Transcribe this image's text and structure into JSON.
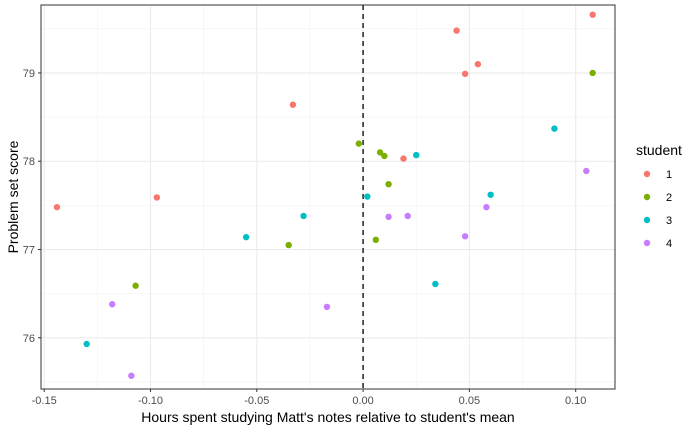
{
  "chart_data": {
    "type": "scatter",
    "title": "",
    "xlabel": "Hours spent studying Matt's notes relative to student's mean",
    "ylabel": "Problem set score",
    "xlim": [
      -0.1515,
      0.1185
    ],
    "ylim": [
      75.42,
      79.77
    ],
    "xticks": [
      -0.15,
      -0.1,
      -0.05,
      0.0,
      0.05,
      0.1
    ],
    "xtick_labels": [
      "-0.15",
      "-0.10",
      "-0.05",
      "0.00",
      "0.05",
      "0.10"
    ],
    "yticks": [
      76,
      77,
      78,
      79
    ],
    "ytick_labels": [
      "76",
      "77",
      "78",
      "79"
    ],
    "grid": true,
    "reference_line": {
      "x": 0,
      "style": "dashed"
    },
    "legend": {
      "title": "student",
      "position": "right"
    },
    "series": [
      {
        "name": "1",
        "color": "#F8766D",
        "points": [
          {
            "x": -0.144,
            "y": 77.48
          },
          {
            "x": -0.097,
            "y": 77.59
          },
          {
            "x": -0.033,
            "y": 78.64
          },
          {
            "x": 0.019,
            "y": 78.03
          },
          {
            "x": 0.044,
            "y": 79.48
          },
          {
            "x": 0.048,
            "y": 78.99
          },
          {
            "x": 0.054,
            "y": 79.1
          },
          {
            "x": 0.108,
            "y": 79.66
          }
        ]
      },
      {
        "name": "2",
        "color": "#7CAE00",
        "points": [
          {
            "x": -0.107,
            "y": 76.59
          },
          {
            "x": -0.035,
            "y": 77.05
          },
          {
            "x": -0.002,
            "y": 78.2
          },
          {
            "x": 0.006,
            "y": 77.11
          },
          {
            "x": 0.008,
            "y": 78.1
          },
          {
            "x": 0.01,
            "y": 78.06
          },
          {
            "x": 0.012,
            "y": 77.74
          },
          {
            "x": 0.108,
            "y": 79.0
          }
        ]
      },
      {
        "name": "3",
        "color": "#00BFC4",
        "points": [
          {
            "x": -0.13,
            "y": 75.93
          },
          {
            "x": -0.055,
            "y": 77.14
          },
          {
            "x": -0.028,
            "y": 77.38
          },
          {
            "x": 0.002,
            "y": 77.6
          },
          {
            "x": 0.025,
            "y": 78.07
          },
          {
            "x": 0.034,
            "y": 76.61
          },
          {
            "x": 0.06,
            "y": 77.62
          },
          {
            "x": 0.09,
            "y": 78.37
          }
        ]
      },
      {
        "name": "4",
        "color": "#C77CFF",
        "points": [
          {
            "x": -0.118,
            "y": 76.38
          },
          {
            "x": -0.109,
            "y": 75.57
          },
          {
            "x": -0.017,
            "y": 76.35
          },
          {
            "x": 0.012,
            "y": 77.37
          },
          {
            "x": 0.021,
            "y": 77.38
          },
          {
            "x": 0.048,
            "y": 77.15
          },
          {
            "x": 0.058,
            "y": 77.48
          },
          {
            "x": 0.105,
            "y": 77.89
          }
        ]
      }
    ]
  }
}
